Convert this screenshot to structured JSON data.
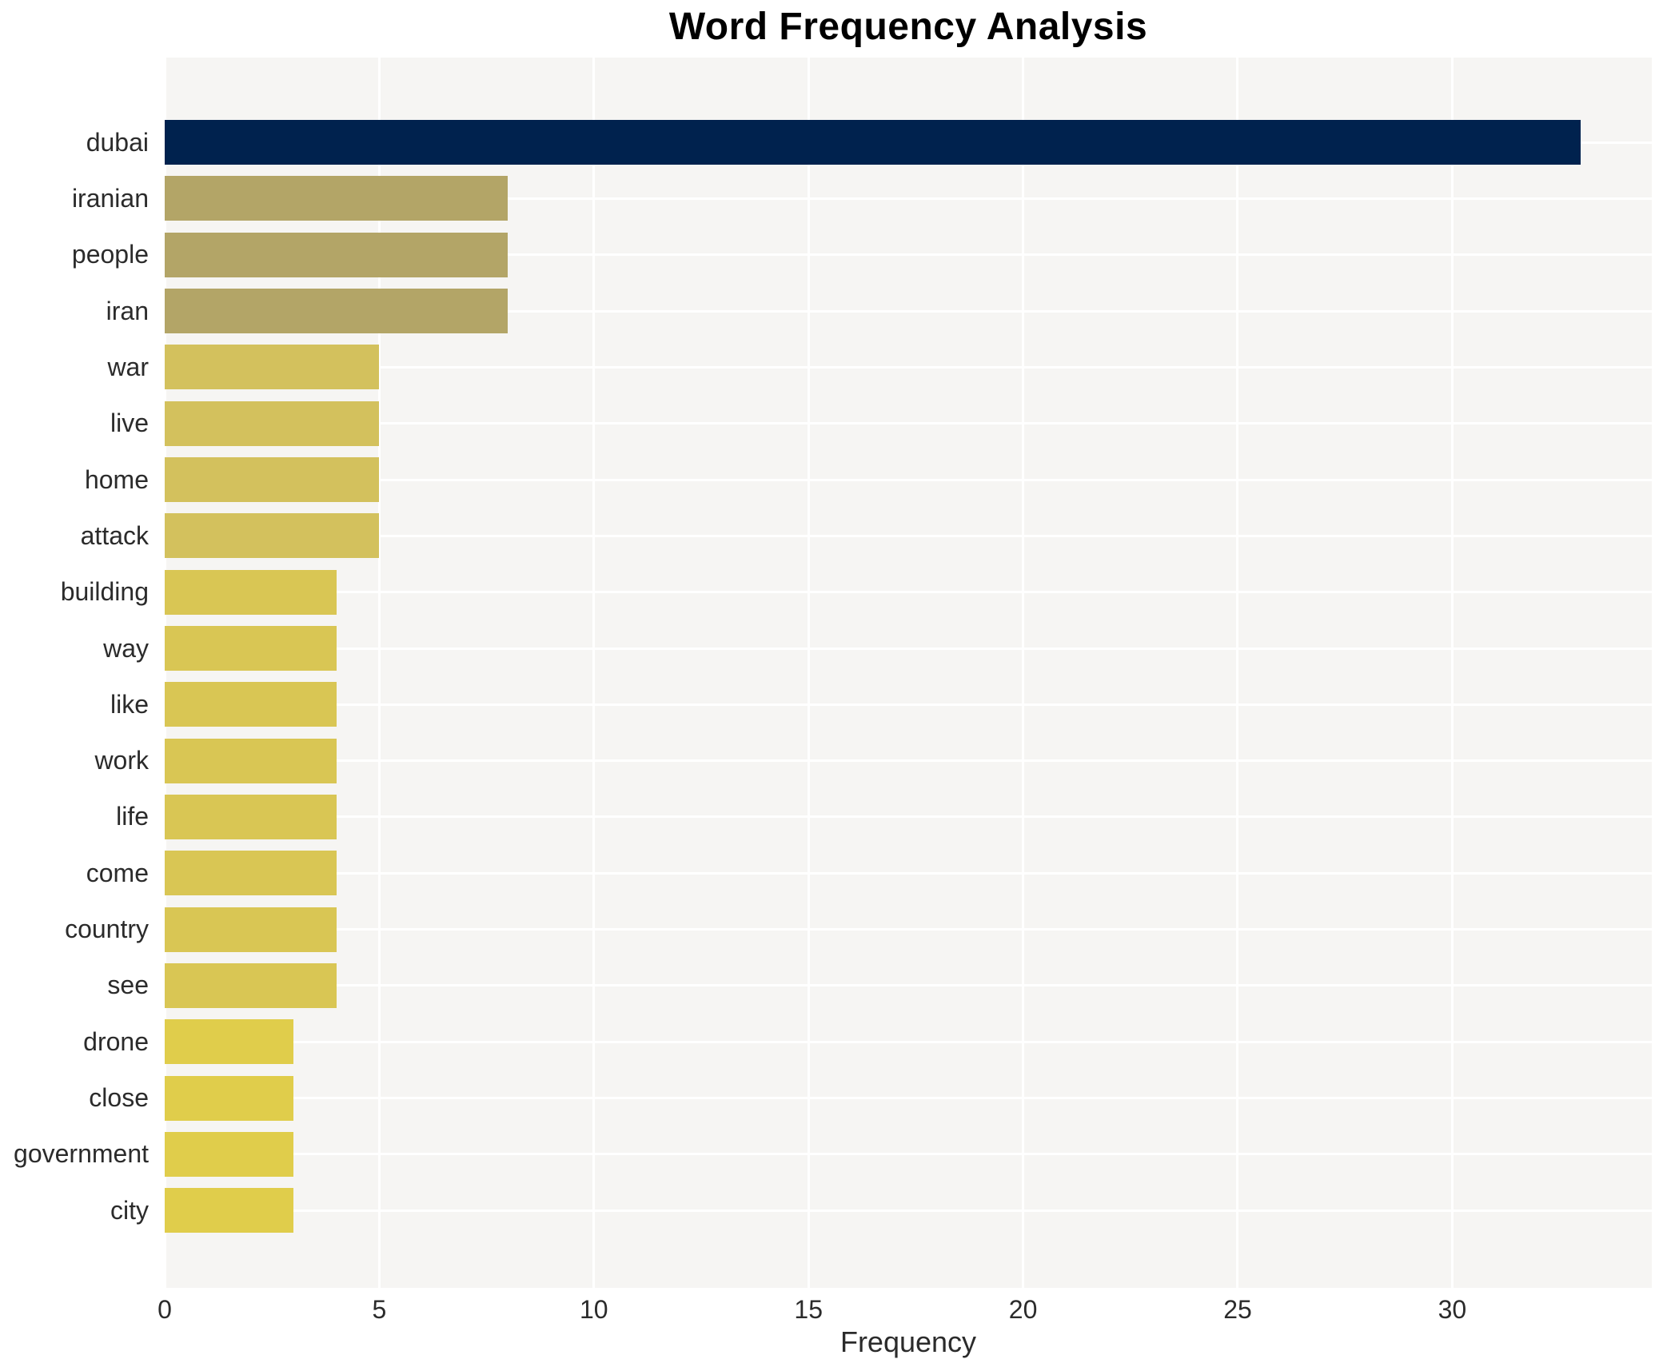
{
  "title": "Word Frequency Analysis",
  "colors": {
    "figure_bg": "#ffffff",
    "plot_bg": "#f6f5f3",
    "grid": "#ffffff",
    "title_color": "#000000",
    "label_color": "#2b2b2b",
    "bar_max": "#00224e",
    "bar_high": "#b3a567",
    "bar_mid": "#d3c15d",
    "bar_low": "#d9c654",
    "bar_min": "#e0cd4b"
  },
  "chart_data": {
    "type": "bar",
    "orientation": "horizontal",
    "title": "Word Frequency Analysis",
    "xlabel": "Frequency",
    "ylabel": "",
    "categories": [
      "dubai",
      "iranian",
      "people",
      "iran",
      "war",
      "live",
      "home",
      "attack",
      "building",
      "way",
      "like",
      "work",
      "life",
      "come",
      "country",
      "see",
      "drone",
      "close",
      "government",
      "city"
    ],
    "values": [
      33,
      8,
      8,
      8,
      5,
      5,
      5,
      5,
      4,
      4,
      4,
      4,
      4,
      4,
      4,
      4,
      3,
      3,
      3,
      3
    ],
    "bar_colors": [
      "#00224e",
      "#b3a567",
      "#b3a567",
      "#b3a567",
      "#d3c15d",
      "#d3c15d",
      "#d3c15d",
      "#d3c15d",
      "#d9c654",
      "#d9c654",
      "#d9c654",
      "#d9c654",
      "#d9c654",
      "#d9c654",
      "#d9c654",
      "#d9c654",
      "#e0cd4b",
      "#e0cd4b",
      "#e0cd4b",
      "#e0cd4b"
    ],
    "xticks": [
      0,
      5,
      10,
      15,
      20,
      25,
      30
    ],
    "xlim": [
      0,
      34.65
    ],
    "grid": "white gridlines on light panel, vertical at each x tick, horizontal at each category center",
    "legend": "none",
    "palette_note": "color mapped to value: max=dark navy, decreasing toward yellow-gold"
  }
}
